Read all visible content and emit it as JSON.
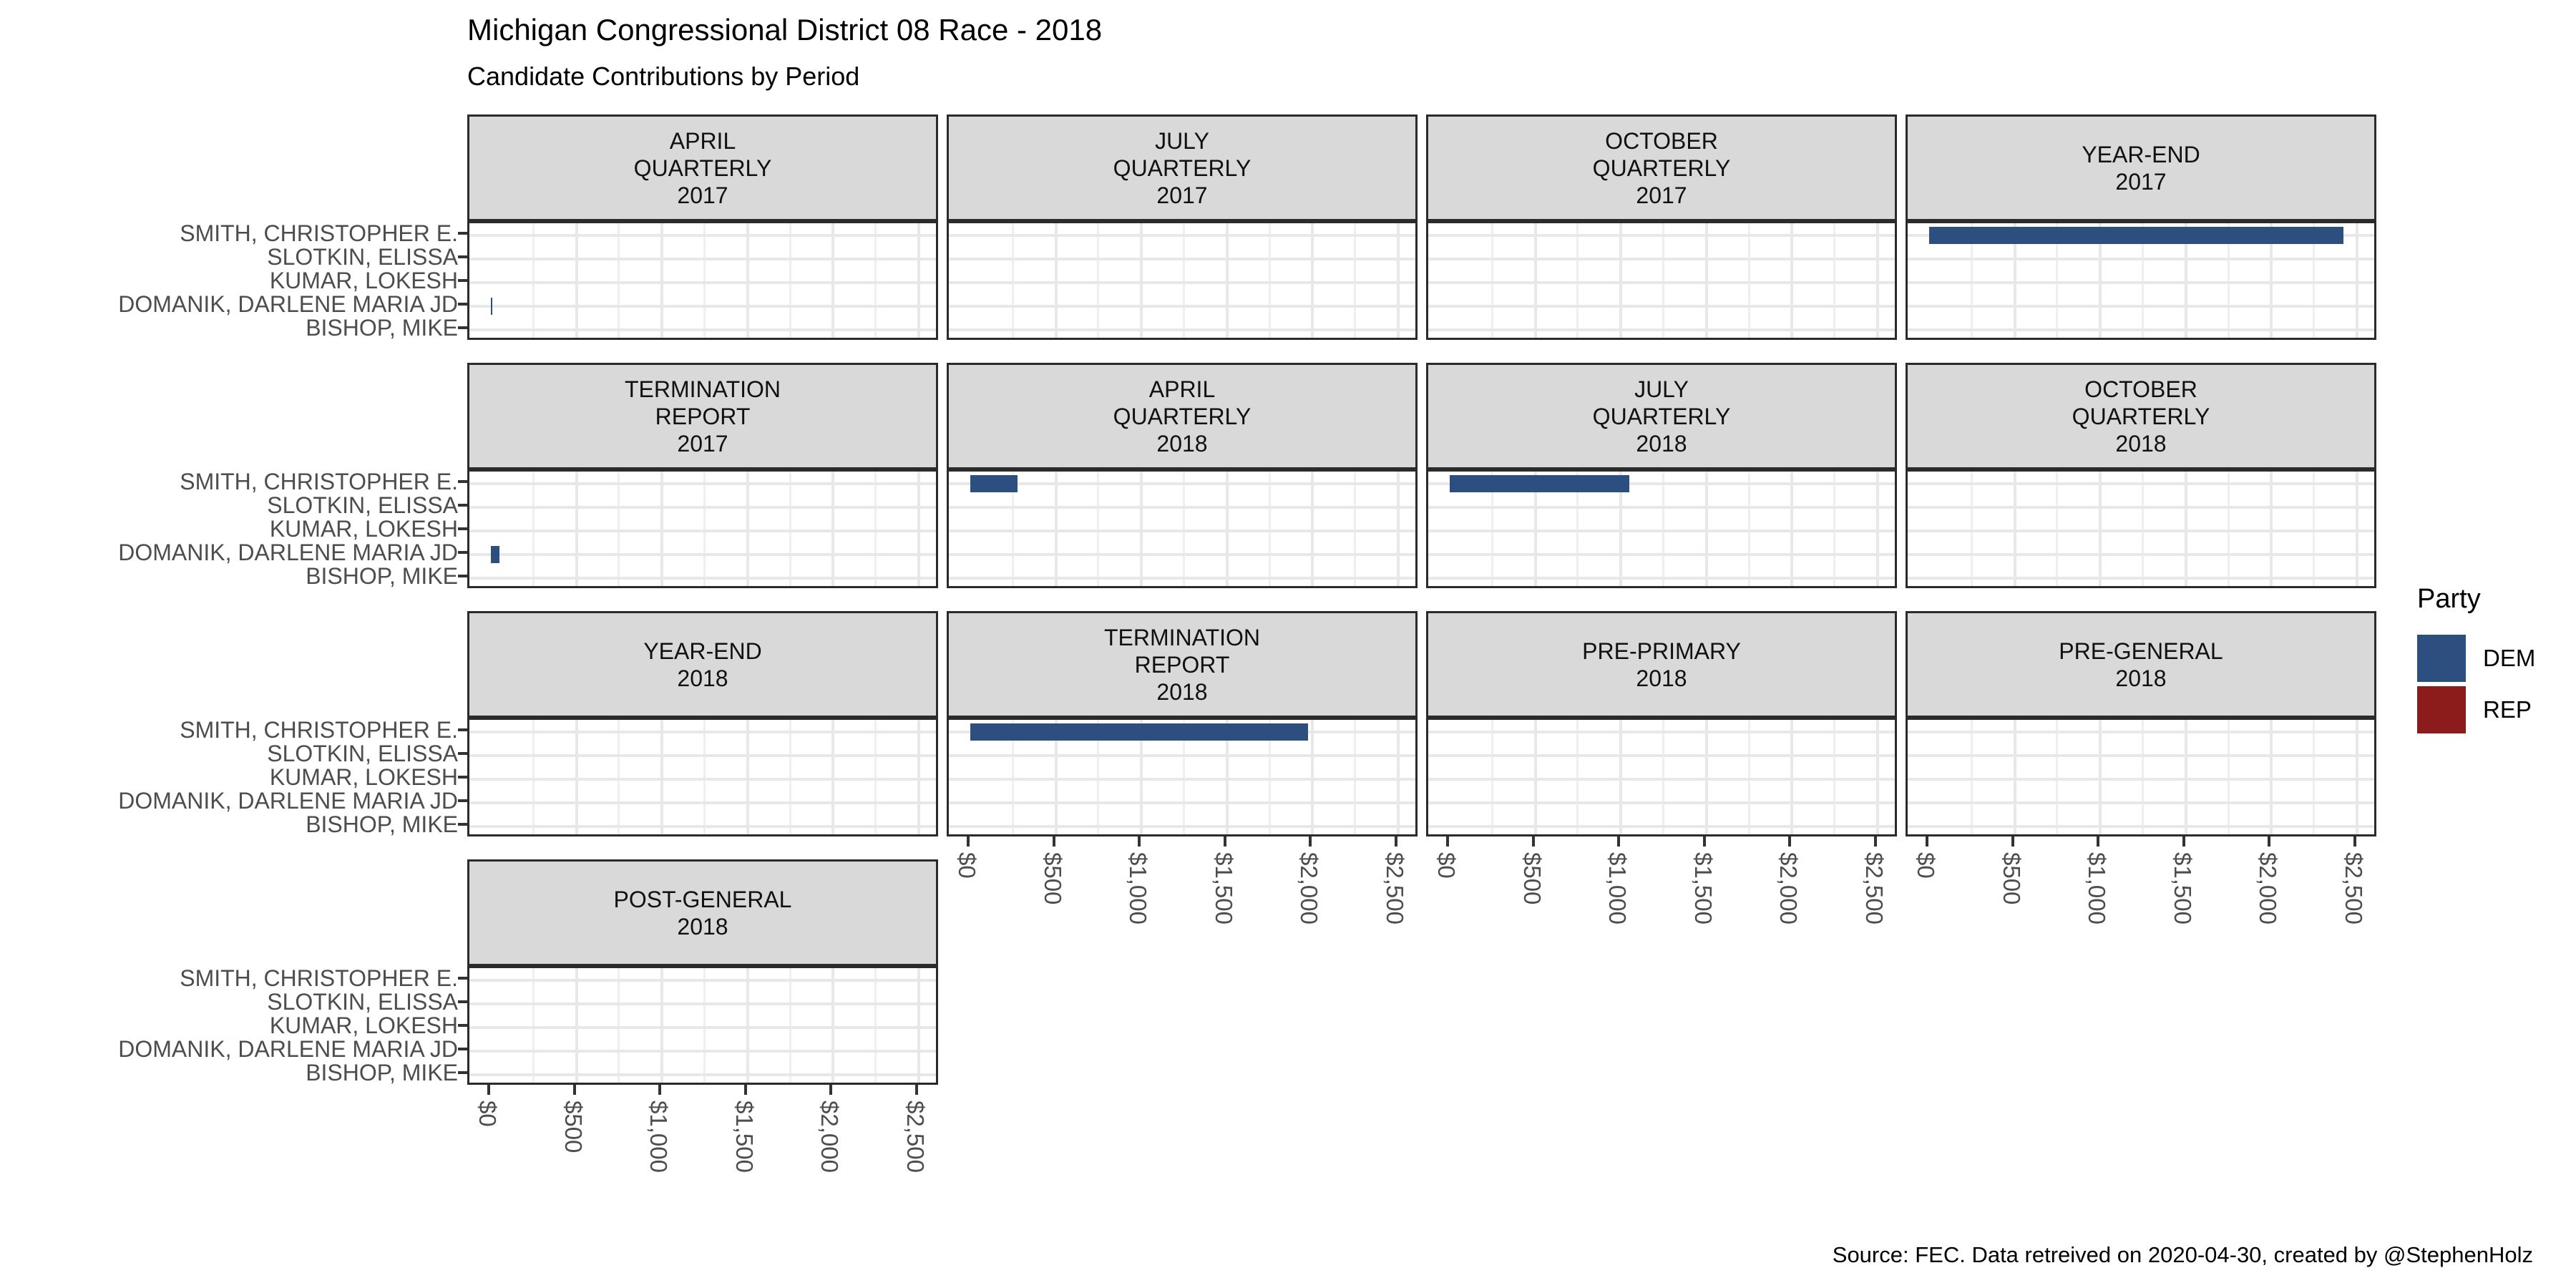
{
  "title": "Michigan Congressional District 08 Race - 2018",
  "subtitle": "Candidate Contributions by Period",
  "caption": "Source: FEC. Data retreived on 2020-04-30, created by @StephenHolz",
  "legend": {
    "title": "Party",
    "entries": [
      {
        "label": "DEM",
        "color": "#2C4F7F"
      },
      {
        "label": "REP",
        "color": "#8C1B1B"
      }
    ]
  },
  "chart_data": {
    "type": "bar",
    "orientation": "horizontal",
    "facet_layout": {
      "columns": 4
    },
    "categories": [
      "SMITH, CHRISTOPHER E.",
      "SLOTKIN, ELISSA",
      "KUMAR, LOKESH",
      "DOMANIK, DARLENE MARIA JD",
      "BISHOP, MIKE"
    ],
    "x_ticks": [
      "$0",
      "$500",
      "$1,000",
      "$1,500",
      "$2,000",
      "$2,500"
    ],
    "x_tick_values": [
      0,
      500,
      1000,
      1500,
      2000,
      2500
    ],
    "xlim": [
      0,
      2500
    ],
    "grid": "on",
    "party_colors": {
      "DEM": "#2C4F7F",
      "REP": "#8C1B1B"
    },
    "facets": [
      {
        "label_lines": [
          "APRIL",
          "QUARTERLY",
          "2017"
        ],
        "bars": [
          {
            "candidate": "DOMANIK, DARLENE MARIA JD",
            "party": "DEM",
            "value": 5
          }
        ]
      },
      {
        "label_lines": [
          "JULY",
          "QUARTERLY",
          "2017"
        ],
        "bars": []
      },
      {
        "label_lines": [
          "OCTOBER",
          "QUARTERLY",
          "2017"
        ],
        "bars": []
      },
      {
        "label_lines": [
          "YEAR-END",
          "2017"
        ],
        "bars": [
          {
            "candidate": "SMITH, CHRISTOPHER E.",
            "party": "DEM",
            "value": 2420
          }
        ]
      },
      {
        "label_lines": [
          "TERMINATION",
          "REPORT",
          "2017"
        ],
        "bars": [
          {
            "candidate": "DOMANIK, DARLENE MARIA JD",
            "party": "DEM",
            "value": 50
          }
        ]
      },
      {
        "label_lines": [
          "APRIL",
          "QUARTERLY",
          "2018"
        ],
        "bars": [
          {
            "candidate": "SMITH, CHRISTOPHER E.",
            "party": "DEM",
            "value": 275
          }
        ]
      },
      {
        "label_lines": [
          "JULY",
          "QUARTERLY",
          "2018"
        ],
        "bars": [
          {
            "candidate": "SMITH, CHRISTOPHER E.",
            "party": "DEM",
            "value": 1050
          }
        ]
      },
      {
        "label_lines": [
          "OCTOBER",
          "QUARTERLY",
          "2018"
        ],
        "bars": []
      },
      {
        "label_lines": [
          "YEAR-END",
          "2018"
        ],
        "bars": []
      },
      {
        "label_lines": [
          "TERMINATION",
          "REPORT",
          "2018"
        ],
        "bars": [
          {
            "candidate": "SMITH, CHRISTOPHER E.",
            "party": "DEM",
            "value": 1975
          }
        ]
      },
      {
        "label_lines": [
          "PRE-PRIMARY",
          "2018"
        ],
        "bars": []
      },
      {
        "label_lines": [
          "PRE-GENERAL",
          "2018"
        ],
        "bars": []
      },
      {
        "label_lines": [
          "POST-GENERAL",
          "2018"
        ],
        "bars": []
      }
    ]
  }
}
